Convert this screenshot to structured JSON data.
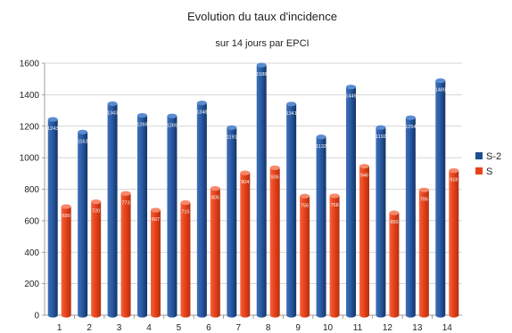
{
  "chart_data": {
    "type": "bar",
    "title": "Evolution du taux d'incidence",
    "subtitle": "sur 14 jours par EPCI",
    "xlabel": "",
    "ylabel": "",
    "categories": [
      "1",
      "2",
      "3",
      "4",
      "5",
      "6",
      "7",
      "8",
      "9",
      "10",
      "11",
      "12",
      "13",
      "14"
    ],
    "ylim": [
      0,
      1600
    ],
    "yticks": [
      "0",
      "200",
      "400",
      "600",
      "800",
      "1000",
      "1200",
      "1400",
      "1600"
    ],
    "grid": true,
    "legend_position": "right",
    "series": [
      {
        "name": "S-2",
        "color": "#1f4e8c",
        "values": [
          1243,
          1163,
          1343,
          1269,
          1265,
          1348,
          1191,
          1588,
          1341,
          1132,
          1449,
          1192,
          1254,
          1489
        ],
        "labels": [
          "1243",
          "1163",
          "1343",
          "1269",
          "1265",
          "1348",
          "1191",
          "1588",
          "1341",
          "1132",
          "1449",
          "1192",
          "1254",
          "1489"
        ]
      },
      {
        "name": "S",
        "color": "#e8421a",
        "values": [
          690,
          720,
          773,
          667,
          715,
          805,
          904,
          936,
          756,
          758,
          946,
          650,
          795,
          918
        ],
        "labels": [
          "690",
          "720",
          "773",
          "667",
          "715",
          "805",
          "904",
          "936",
          "756",
          "758",
          "946",
          "650",
          "795",
          "918"
        ]
      }
    ]
  }
}
